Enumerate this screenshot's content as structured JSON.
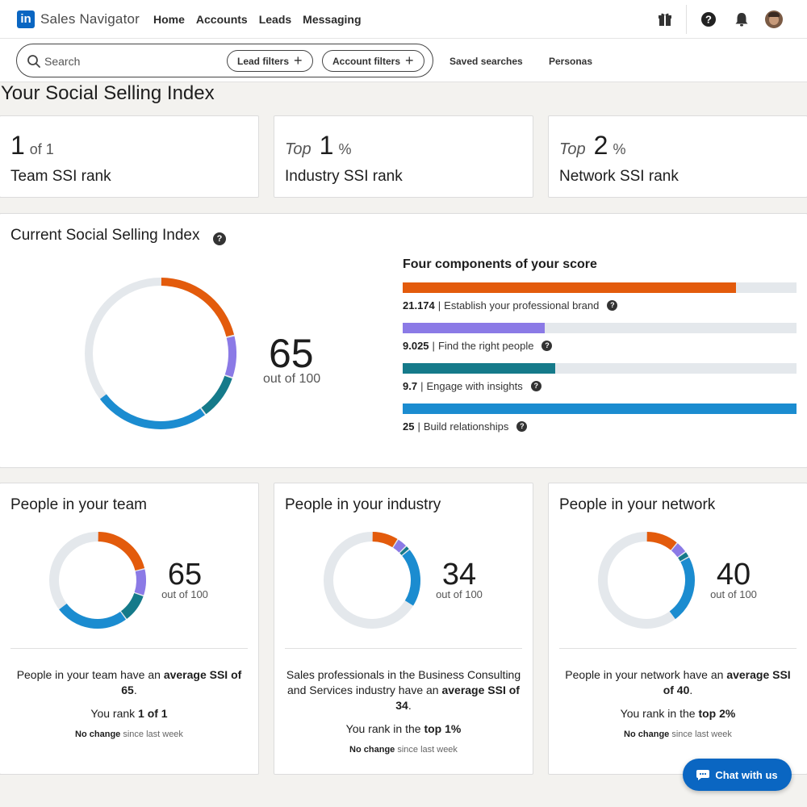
{
  "nav": {
    "logo_text": "in",
    "brand": "Sales Navigator",
    "links": [
      "Home",
      "Accounts",
      "Leads",
      "Messaging"
    ],
    "icons": [
      "gift-icon",
      "help-icon",
      "bell-icon",
      "avatar"
    ]
  },
  "search": {
    "placeholder": "Search",
    "lead_filters": "Lead filters",
    "account_filters": "Account filters",
    "saved_searches": "Saved searches",
    "personas": "Personas"
  },
  "page_title": "Your Social Selling Index",
  "ranks": {
    "team": {
      "value": "1",
      "suffix": "of 1",
      "label": "Team SSI rank"
    },
    "industry": {
      "prefix": "Top",
      "value": "1",
      "suffix": "%",
      "label": "Industry SSI rank"
    },
    "network": {
      "prefix": "Top",
      "value": "2",
      "suffix": "%",
      "label": "Network SSI rank"
    }
  },
  "current_ssi": {
    "title": "Current Social Selling Index",
    "score": "65",
    "out_of": "out of 100",
    "components_title": "Four components of your score",
    "components": [
      {
        "value": "21.174",
        "label": "Establish your professional brand",
        "fraction": 0.847,
        "color": "#e35b0c"
      },
      {
        "value": "9.025",
        "label": "Find the right people",
        "fraction": 0.361,
        "color": "#8b7ae6"
      },
      {
        "value": "9.7",
        "label": "Engage with insights",
        "fraction": 0.388,
        "color": "#157a8a"
      },
      {
        "value": "25",
        "label": "Build relationships",
        "fraction": 1.0,
        "color": "#1b8cd0"
      }
    ]
  },
  "colors": {
    "brand": "#e35b0c",
    "people": "#8b7ae6",
    "insights": "#157a8a",
    "relationships": "#1b8cd0",
    "track": "#e4e8ec",
    "linkedin_blue": "#0a66c2"
  },
  "people": [
    {
      "title": "People in your team",
      "score": "65",
      "out_of": "out of 100",
      "text_pre": "People in your team have an ",
      "text_bold": "average SSI of 65",
      "text_post": ".",
      "rank_pre": "You rank ",
      "rank_bold": "1 of 1",
      "change_bold": "No change",
      "change_rest": " since last week",
      "components": [
        21.174,
        9.025,
        9.7,
        25
      ]
    },
    {
      "title": "People in your industry",
      "score": "34",
      "out_of": "out of 100",
      "text_pre": "Sales professionals in the Business Consulting and Services industry have an ",
      "text_bold": "average SSI of 34",
      "text_post": ".",
      "rank_pre": "You rank in the ",
      "rank_bold": "top 1%",
      "change_bold": "No change",
      "change_rest": " since last week",
      "components": [
        9,
        3.5,
        1.5,
        20
      ]
    },
    {
      "title": "People in your network",
      "score": "40",
      "out_of": "out of 100",
      "text_pre": "People in your network have an ",
      "text_bold": "average SSI of 40",
      "text_post": ".",
      "rank_pre": "You rank in the ",
      "rank_bold": "top 2%",
      "change_bold": "No change",
      "change_rest": " since last week",
      "components": [
        11,
        4,
        2,
        23
      ]
    }
  ],
  "chat": {
    "label": "Chat with us"
  }
}
